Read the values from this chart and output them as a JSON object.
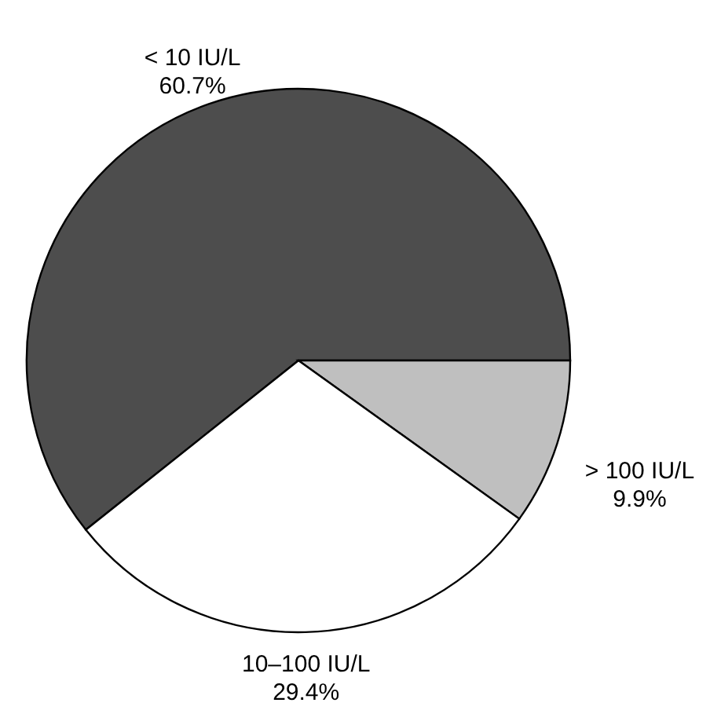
{
  "chart_data": {
    "type": "pie",
    "categories": [
      "< 10 IU/L",
      "> 100 IU/L",
      "10–100 IU/L"
    ],
    "values": [
      60.7,
      9.9,
      29.4
    ],
    "value_labels": [
      "60.7%",
      "9.9%",
      "29.4%"
    ],
    "colors": [
      "#4d4d4d",
      "#bfbfbf",
      "#ffffff"
    ]
  }
}
